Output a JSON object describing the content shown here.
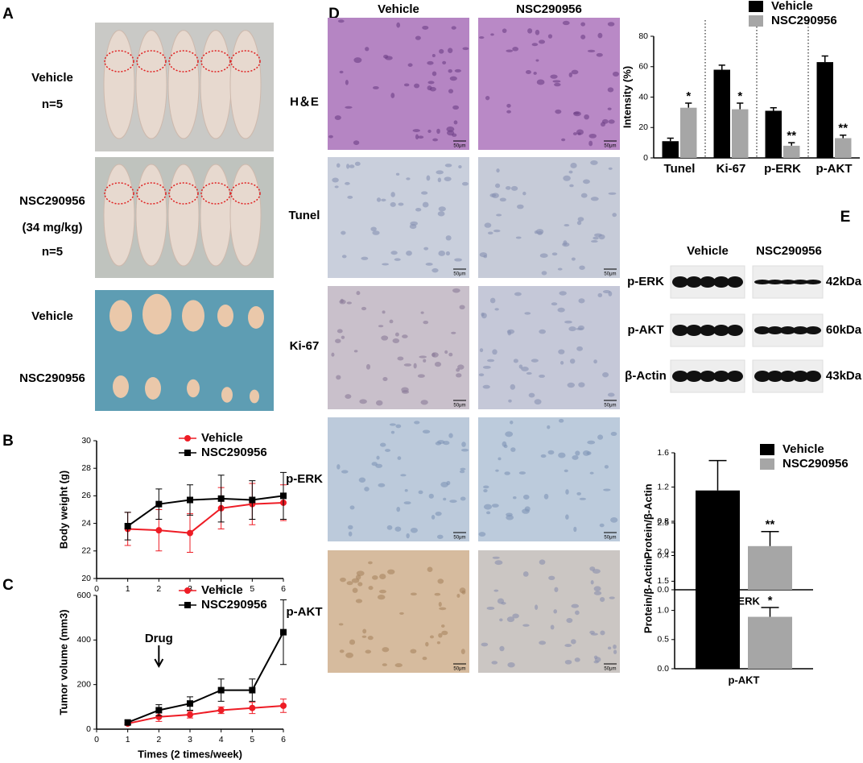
{
  "panels": [
    "A",
    "B",
    "C",
    "D",
    "E"
  ],
  "panel_a": {
    "rows": [
      {
        "labels": [
          "Vehicle",
          "n=5"
        ]
      },
      {
        "labels": [
          "NSC290956",
          "(34 mg/kg)",
          "n=5"
        ]
      }
    ],
    "tumor_rows": [
      "Vehicle",
      "NSC290956"
    ]
  },
  "panel_d": {
    "columns": [
      "Vehicle",
      "NSC290956"
    ],
    "rows": [
      "H＆E",
      "Tunel",
      "Ki-67",
      "p-ERK",
      "p-AKT"
    ],
    "scale_bar": "50μm"
  },
  "panel_e": {
    "columns": [
      "Vehicle",
      "NSC290956"
    ],
    "rows": [
      {
        "protein": "p-ERK",
        "size": "42kDa"
      },
      {
        "protein": "p-AKT",
        "size": "60kDa"
      },
      {
        "protein": "β-Actin",
        "size": "43kDa"
      }
    ]
  },
  "chart_data": [
    {
      "type": "line",
      "ylabel": "Body weight (g)",
      "x": [
        1,
        2,
        3,
        4,
        5,
        6
      ],
      "xlim": [
        0,
        6
      ],
      "xticks": [
        0,
        1,
        2,
        3,
        4,
        5,
        6
      ],
      "ylim": [
        20,
        30
      ],
      "yticks": [
        20,
        22,
        24,
        26,
        28,
        30
      ],
      "legend": "upper center",
      "series": [
        {
          "name": "Vehicle",
          "color": "#ee1c25",
          "marker": "circle",
          "values": [
            23.6,
            23.5,
            23.3,
            25.1,
            25.4,
            25.5
          ],
          "errors": [
            1.2,
            1.5,
            1.4,
            1.5,
            1.5,
            1.3
          ]
        },
        {
          "name": "NSC290956",
          "color": "#000000",
          "marker": "square",
          "values": [
            23.8,
            25.4,
            25.7,
            25.8,
            25.7,
            26.0
          ],
          "errors": [
            1.0,
            1.1,
            1.1,
            1.7,
            1.4,
            1.7
          ]
        }
      ]
    },
    {
      "type": "line",
      "ylabel": "Tumor volume (mm3)",
      "xlabel": "Times (2 times/week)",
      "x": [
        1,
        2,
        3,
        4,
        5,
        6
      ],
      "xlim": [
        0,
        6
      ],
      "xticks": [
        0,
        1,
        2,
        3,
        4,
        5,
        6
      ],
      "ylim": [
        0,
        600
      ],
      "yticks": [
        0,
        200,
        400,
        600
      ],
      "legend": "upper center",
      "annotations": [
        {
          "text": "Drug",
          "x": 2
        }
      ],
      "series": [
        {
          "name": "Vehicle",
          "color": "#ee1c25",
          "marker": "circle",
          "values": [
            25,
            55,
            65,
            85,
            95,
            105
          ],
          "errors": [
            5,
            20,
            15,
            15,
            25,
            30
          ]
        },
        {
          "name": "NSC290956",
          "color": "#000000",
          "marker": "square",
          "values": [
            30,
            85,
            115,
            175,
            175,
            435
          ],
          "errors": [
            10,
            25,
            30,
            50,
            50,
            145
          ]
        }
      ]
    },
    {
      "type": "bar",
      "ylabel": "Intensity (%)",
      "categories": [
        "Tunel",
        "Ki-67",
        "p-ERK",
        "p-AKT"
      ],
      "ylim": [
        0,
        80
      ],
      "yticks": [
        0,
        20,
        40,
        60,
        80
      ],
      "legend": "top",
      "series": [
        {
          "name": "Vehicle",
          "color": "#000000",
          "values": [
            11,
            58,
            31,
            63
          ],
          "errors": [
            2,
            3,
            2,
            4
          ]
        },
        {
          "name": "NSC290956",
          "color": "#a6a6a6",
          "values": [
            33,
            32,
            8,
            13
          ],
          "errors": [
            3,
            4,
            2,
            2
          ],
          "annotations": [
            "*",
            "*",
            "**",
            "**"
          ]
        }
      ]
    },
    {
      "type": "bar",
      "ylabel": "Protein/β-Actin",
      "xlabel": "p-ERK",
      "ylim": [
        0,
        1.6
      ],
      "yticks": [
        {
          "value": 0,
          "label": "0.0"
        },
        0.4,
        0.8,
        1.2,
        1.6
      ],
      "legend": "upper right",
      "series": [
        {
          "name": "Vehicle",
          "color": "#000000",
          "values": [
            1.16
          ],
          "errors": [
            0.35
          ]
        },
        {
          "name": "NSC290956",
          "color": "#a6a6a6",
          "values": [
            0.51
          ],
          "errors": [
            0.17
          ],
          "annotations": [
            "**"
          ]
        }
      ]
    },
    {
      "type": "bar",
      "ylabel": "Protein/β-Actin",
      "xlabel": "p-AKT",
      "ylim": [
        0,
        2.5
      ],
      "yticks": [
        {
          "value": 0,
          "label": "0.0"
        },
        0.5,
        {
          "value": 1,
          "label": "1.0"
        },
        1.5,
        {
          "value": 2,
          "label": "2.0"
        },
        2.5
      ],
      "legend": false,
      "series": [
        {
          "name": "Vehicle",
          "color": "#000000",
          "values": [
            1.5
          ],
          "errors": [
            0.51
          ]
        },
        {
          "name": "NSC290956",
          "color": "#a6a6a6",
          "values": [
            0.89
          ],
          "errors": [
            0.16
          ],
          "annotations": [
            "*"
          ]
        }
      ]
    }
  ]
}
